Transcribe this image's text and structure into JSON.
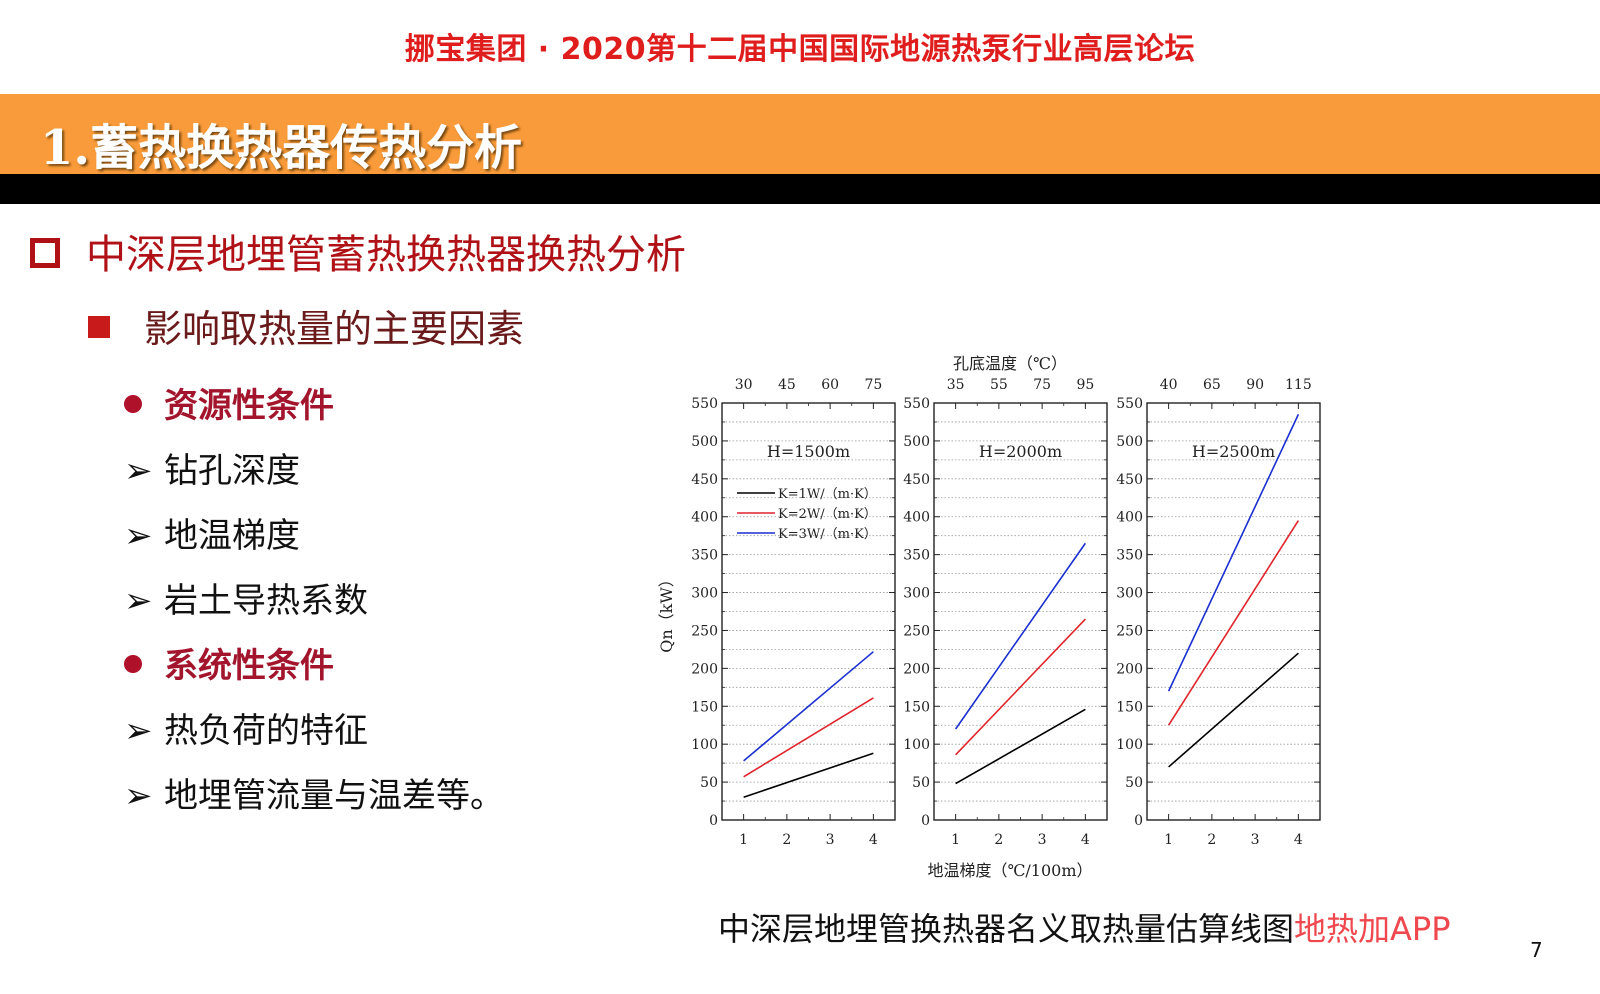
{
  "header": {
    "forum_title": "挪宝集团 · 2020第十二届中国国际地源热泵行业高层论坛",
    "section_title": "1.蓄热换热器传热分析"
  },
  "content": {
    "heading": "中深层地埋管蓄热换热器换热分析",
    "subheading": "影响取热量的主要因素",
    "items": [
      {
        "text": "资源性条件",
        "kind": "category"
      },
      {
        "text": "钻孔深度",
        "kind": "item"
      },
      {
        "text": "地温梯度",
        "kind": "item"
      },
      {
        "text": "岩土导热系数",
        "kind": "item"
      },
      {
        "text": "系统性条件",
        "kind": "category"
      },
      {
        "text": "热负荷的特征",
        "kind": "item"
      },
      {
        "text": "地埋管流量与温差等。",
        "kind": "item"
      }
    ]
  },
  "caption": "中深层地埋管换热器名义取热量估算线图",
  "watermark": "地热加APP",
  "page_number": "7",
  "chart_data": {
    "type": "line",
    "top_axis_label": "孔底温度（℃）",
    "xlabel": "地温梯度（℃/100m）",
    "ylabel": "Qn（kW）",
    "ylim": [
      0,
      550
    ],
    "yticks": [
      0,
      50,
      100,
      150,
      200,
      250,
      300,
      350,
      400,
      450,
      500,
      550
    ],
    "xticks": [
      1,
      2,
      3,
      4
    ],
    "xlim": [
      0.5,
      4.5
    ],
    "grid": true,
    "legend_placement": "upper-left of first panel",
    "colors": {
      "K1": "#000000",
      "K2": "#e0242a",
      "K3": "#1a2fd0"
    },
    "panels": [
      {
        "title": "H=1500m",
        "top_ticks": [
          "30",
          "45",
          "60",
          "75"
        ],
        "series": [
          {
            "name": "K=1W/（m·K）",
            "color": "#000000",
            "x": [
              1,
              4
            ],
            "y": [
              30,
              88
            ]
          },
          {
            "name": "K=2W/（m·K）",
            "color": "#e0242a",
            "x": [
              1,
              4
            ],
            "y": [
              57,
              161
            ]
          },
          {
            "name": "K=3W/（m·K）",
            "color": "#1a2fd0",
            "x": [
              1,
              4
            ],
            "y": [
              78,
              222
            ]
          }
        ]
      },
      {
        "title": "H=2000m",
        "top_ticks": [
          "35",
          "55",
          "75",
          "95"
        ],
        "series": [
          {
            "color": "#000000",
            "x": [
              1,
              4
            ],
            "y": [
              48,
              146
            ]
          },
          {
            "color": "#e0242a",
            "x": [
              1,
              4
            ],
            "y": [
              86,
              265
            ]
          },
          {
            "color": "#1a2fd0",
            "x": [
              1,
              4
            ],
            "y": [
              120,
              365
            ]
          }
        ]
      },
      {
        "title": "H=2500m",
        "top_ticks": [
          "40",
          "65",
          "90",
          "115"
        ],
        "series": [
          {
            "color": "#000000",
            "x": [
              1,
              4
            ],
            "y": [
              70,
              220
            ]
          },
          {
            "color": "#e0242a",
            "x": [
              1,
              4
            ],
            "y": [
              125,
              395
            ]
          },
          {
            "color": "#1a2fd0",
            "x": [
              1,
              4
            ],
            "y": [
              170,
              535
            ]
          }
        ]
      }
    ]
  }
}
